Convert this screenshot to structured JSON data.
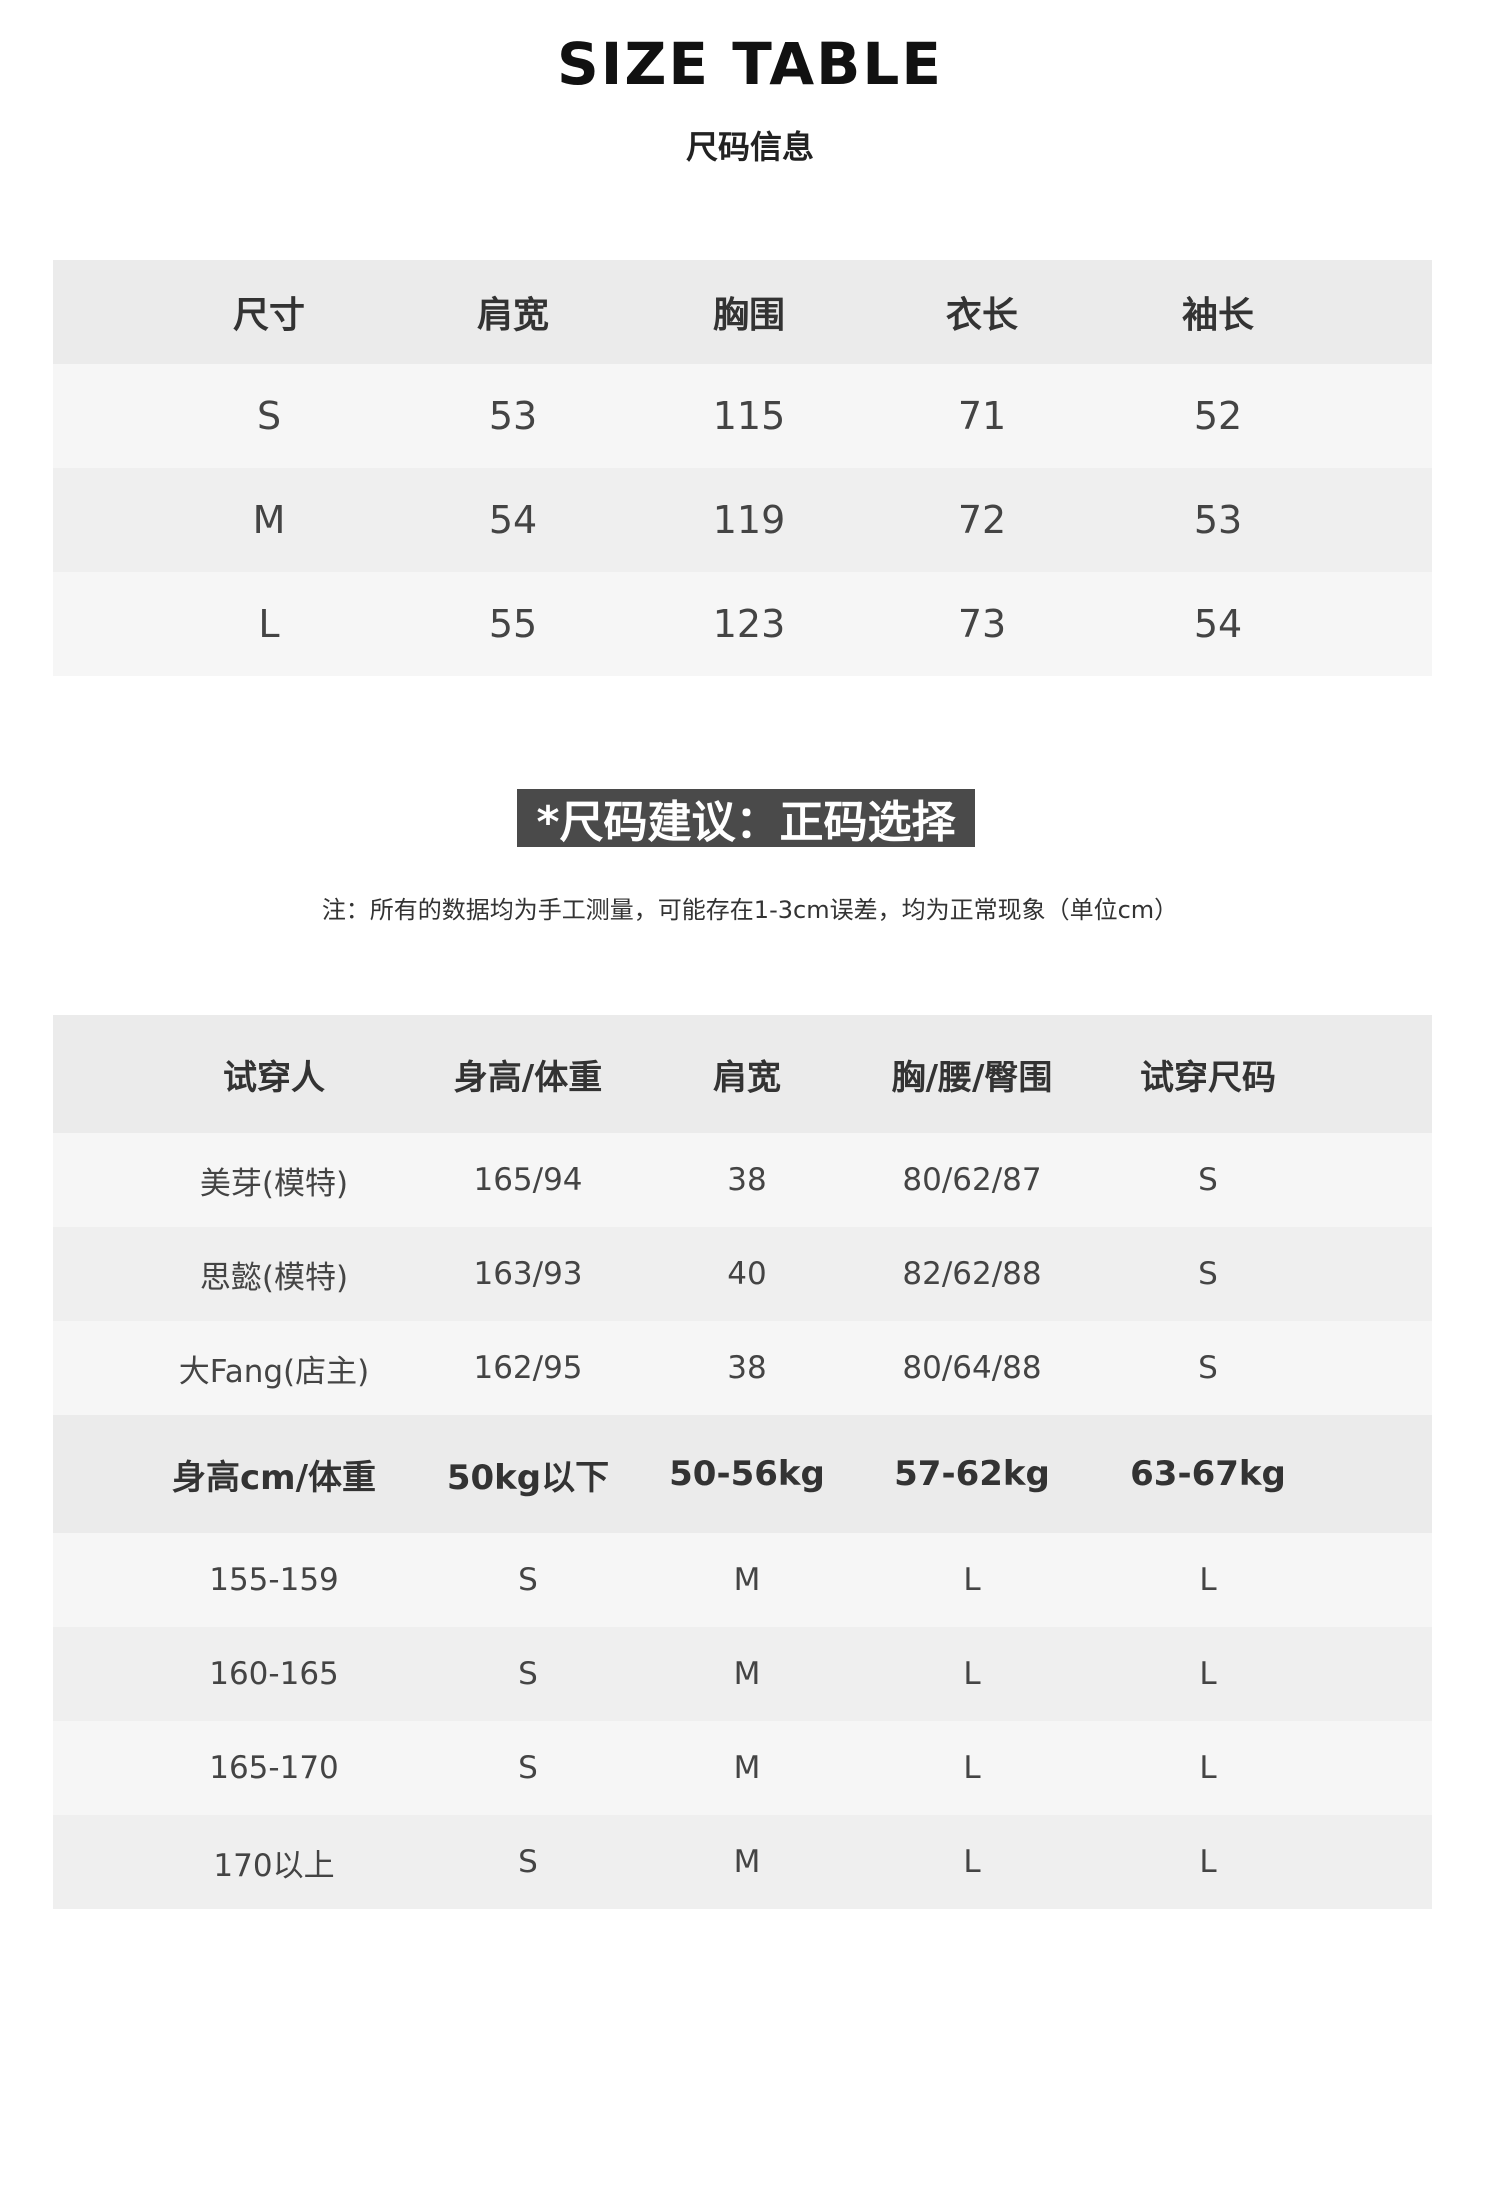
{
  "header": {
    "title": "SIZE TABLE",
    "subtitle": "尺码信息"
  },
  "size_table": {
    "headers": [
      "尺寸",
      "肩宽",
      "胸围",
      "衣长",
      "袖长"
    ],
    "rows": [
      [
        "S",
        "53",
        "115",
        "71",
        "52"
      ],
      [
        "M",
        "54",
        "119",
        "72",
        "53"
      ],
      [
        "L",
        "55",
        "123",
        "73",
        "54"
      ]
    ]
  },
  "recommendation": {
    "banner": "*尺码建议：正码选择",
    "note": "注：所有的数据均为手工测量，可能存在1-3cm误差，均为正常现象（单位cm）"
  },
  "tryon_table": {
    "headers": [
      "试穿人",
      "身高/体重",
      "肩宽",
      "胸/腰/臀围",
      "试穿尺码"
    ],
    "rows": [
      [
        "美芽(模特)",
        "165/94",
        "38",
        "80/62/87",
        "S"
      ],
      [
        "思懿(模特)",
        "163/93",
        "40",
        "82/62/88",
        "S"
      ],
      [
        "大Fang(店主)",
        "162/95",
        "38",
        "80/64/88",
        "S"
      ]
    ]
  },
  "guide_table": {
    "headers": [
      "身高cm/体重",
      "50kg以下",
      "50-56kg",
      "57-62kg",
      "63-67kg"
    ],
    "rows": [
      [
        "155-159",
        "S",
        "M",
        "L",
        "L"
      ],
      [
        "160-165",
        "S",
        "M",
        "L",
        "L"
      ],
      [
        "165-170",
        "S",
        "M",
        "L",
        "L"
      ],
      [
        "170以上",
        "S",
        "M",
        "L",
        "L"
      ]
    ]
  },
  "colors": {
    "header_bg": "#ebebeb",
    "row_light": "#f6f6f6",
    "row_dark": "#efefef",
    "banner_bg": "#4a4a4a"
  }
}
